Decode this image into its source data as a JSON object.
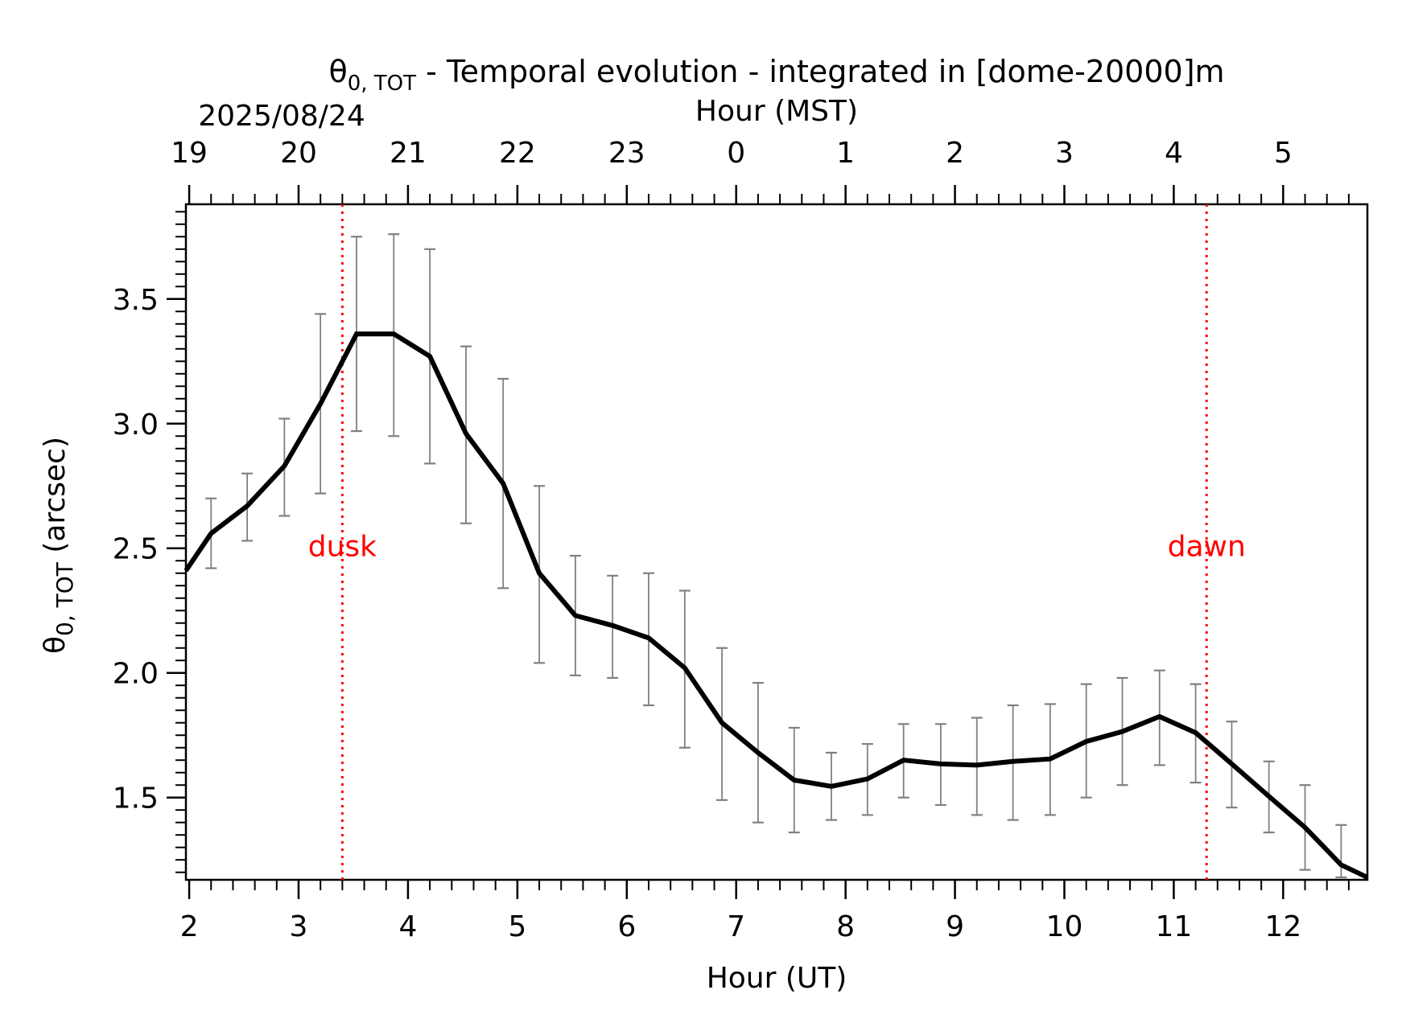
{
  "chart_data": {
    "type": "line",
    "title": "θ",
    "title_sub": "0, TOT",
    "title_rest": " - Temporal evolution - integrated in [dome-20000]m",
    "date_label": "2025/08/24",
    "xlabel": "Hour (UT)",
    "x2label": "Hour (MST)",
    "ylabel": "θ",
    "ylabel_sub": "0, TOT",
    "ylabel_rest": " (arcsec)",
    "xlim": [
      1.97,
      12.77
    ],
    "ylim": [
      1.17,
      3.88
    ],
    "xticks": [
      2,
      3,
      4,
      5,
      6,
      7,
      8,
      9,
      10,
      11,
      12
    ],
    "xtick_labels": [
      "2",
      "3",
      "4",
      "5",
      "6",
      "7",
      "8",
      "9",
      "10",
      "11",
      "12"
    ],
    "x2ticks": [
      2,
      3,
      4,
      5,
      6,
      7,
      8,
      9,
      10,
      11,
      12
    ],
    "x2tick_labels": [
      "19",
      "20",
      "21",
      "22",
      "23",
      "0",
      "1",
      "2",
      "3",
      "4",
      "5"
    ],
    "yticks": [
      1.5,
      2.0,
      2.5,
      3.0,
      3.5
    ],
    "ytick_labels": [
      "1.5",
      "2.0",
      "2.5",
      "3.0",
      "3.5"
    ],
    "grid": false,
    "series": [
      {
        "x": [
          1.97,
          2.2,
          2.53,
          2.87,
          3.2,
          3.53,
          3.87,
          4.2,
          4.53,
          4.87,
          5.2,
          5.53,
          5.87,
          6.2,
          6.53,
          6.87,
          7.2,
          7.53,
          7.87,
          8.2,
          8.53,
          8.87,
          9.2,
          9.53,
          9.87,
          10.2,
          10.53,
          10.87,
          11.2,
          11.53,
          11.87,
          12.2,
          12.53,
          12.77
        ],
        "y": [
          2.41,
          2.56,
          2.67,
          2.83,
          3.08,
          3.36,
          3.36,
          3.27,
          2.96,
          2.76,
          2.4,
          2.23,
          2.19,
          2.14,
          2.02,
          1.8,
          1.68,
          1.57,
          1.545,
          1.575,
          1.65,
          1.635,
          1.63,
          1.645,
          1.655,
          1.725,
          1.765,
          1.825,
          1.76,
          1.635,
          1.505,
          1.38,
          1.23,
          1.18
        ],
        "err_x": [
          2.2,
          2.53,
          2.87,
          3.2,
          3.53,
          3.87,
          4.2,
          4.53,
          4.87,
          5.2,
          5.53,
          5.87,
          6.2,
          6.53,
          6.87,
          7.2,
          7.53,
          7.87,
          8.2,
          8.53,
          8.87,
          9.2,
          9.53,
          9.87,
          10.2,
          10.53,
          10.87,
          11.2,
          11.53,
          11.87,
          12.2,
          12.53
        ],
        "err_low": [
          2.42,
          2.53,
          2.63,
          2.72,
          2.97,
          2.95,
          2.84,
          2.6,
          2.34,
          2.04,
          1.99,
          1.98,
          1.87,
          1.7,
          1.49,
          1.4,
          1.36,
          1.41,
          1.43,
          1.5,
          1.47,
          1.43,
          1.41,
          1.43,
          1.5,
          1.55,
          1.63,
          1.56,
          1.46,
          1.36,
          1.21,
          1.18
        ],
        "err_high": [
          2.7,
          2.8,
          3.02,
          3.44,
          3.75,
          3.76,
          3.7,
          3.31,
          3.18,
          2.75,
          2.47,
          2.39,
          2.4,
          2.33,
          2.1,
          1.96,
          1.78,
          1.68,
          1.715,
          1.795,
          1.795,
          1.82,
          1.87,
          1.875,
          1.955,
          1.98,
          2.01,
          1.955,
          1.805,
          1.645,
          1.55,
          1.39
        ]
      }
    ],
    "annotations": [
      {
        "label": "dusk",
        "x": 3.4,
        "y": 2.51
      },
      {
        "label": "dawn",
        "x": 11.3,
        "y": 2.51
      }
    ],
    "colors": {
      "line": "#000000",
      "errorbar": "#808080",
      "markers": "#ff0000"
    }
  }
}
